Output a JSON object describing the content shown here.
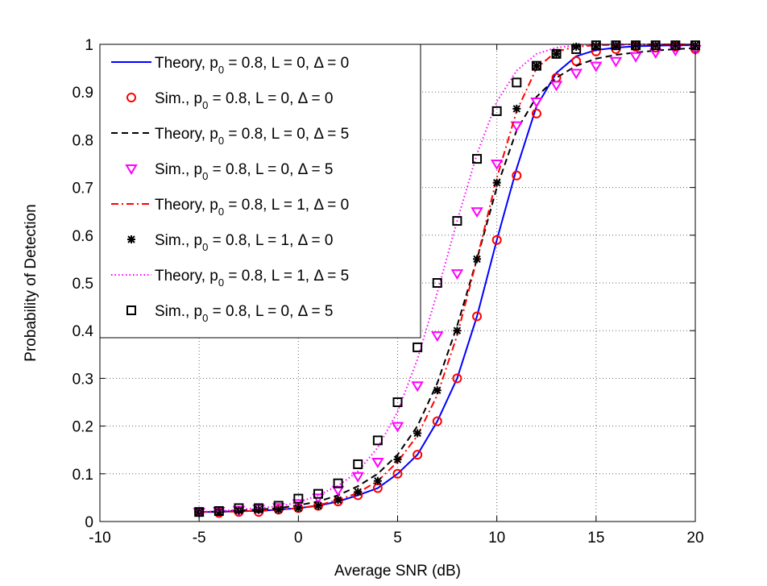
{
  "chart_data": {
    "type": "line",
    "title": "",
    "xlabel": "Average SNR (dB)",
    "ylabel": "Probability of Detection",
    "xlim": [
      -10,
      20
    ],
    "ylim": [
      0,
      1
    ],
    "xticks": [
      -10,
      -5,
      0,
      5,
      10,
      15,
      20
    ],
    "yticks": [
      0,
      0.1,
      0.2,
      0.3,
      0.4,
      0.5,
      0.6,
      0.7,
      0.8,
      0.9,
      1
    ],
    "xtick_labels": [
      "-10",
      "-5",
      "0",
      "5",
      "10",
      "15",
      "20"
    ],
    "ytick_labels": [
      "0",
      "0.1",
      "0.2",
      "0.3",
      "0.4",
      "0.5",
      "0.6",
      "0.7",
      "0.8",
      "0.9",
      "1"
    ],
    "grid": true,
    "legend_position": "top-left",
    "x": [
      -5,
      -4,
      -3,
      -2,
      -1,
      0,
      1,
      2,
      3,
      4,
      5,
      6,
      7,
      8,
      9,
      10,
      11,
      12,
      13,
      14,
      15,
      16,
      17,
      18,
      19,
      20
    ],
    "series": [
      {
        "name": "Theory, p0 = 0.8, L = 0, Δ = 0",
        "legend_prefix": "Theory, p",
        "legend_sub": "0",
        "legend_suffix": " = 0.8, L = 0, Δ = 0",
        "style": "line",
        "line": "solid",
        "color": "#0000ff",
        "values": [
          0.02,
          0.02,
          0.022,
          0.022,
          0.025,
          0.028,
          0.033,
          0.042,
          0.055,
          0.07,
          0.1,
          0.14,
          0.21,
          0.3,
          0.43,
          0.59,
          0.74,
          0.87,
          0.94,
          0.975,
          0.988,
          0.993,
          0.996,
          0.997,
          0.998,
          0.998
        ]
      },
      {
        "name": "Sim., p0 = 0.8, L = 0, Δ = 0",
        "legend_prefix": "Sim., p",
        "legend_sub": "0",
        "legend_suffix": " = 0.8, L = 0, Δ = 0",
        "style": "marker",
        "marker": "circle",
        "color": "#ff0000",
        "values": [
          0.02,
          0.018,
          0.02,
          0.02,
          0.025,
          0.028,
          0.033,
          0.042,
          0.055,
          0.07,
          0.1,
          0.14,
          0.21,
          0.3,
          0.43,
          0.59,
          0.725,
          0.855,
          0.93,
          0.965,
          0.985,
          0.99,
          0.995,
          0.993,
          0.995,
          0.99
        ]
      },
      {
        "name": "Theory, p0 = 0.8, L = 0, Δ = 5",
        "legend_prefix": "Theory, p",
        "legend_sub": "0",
        "legend_suffix": " = 0.8, L = 0, Δ = 5",
        "style": "line",
        "line": "dashed",
        "color": "#000000",
        "values": [
          0.02,
          0.021,
          0.023,
          0.025,
          0.028,
          0.034,
          0.042,
          0.055,
          0.074,
          0.1,
          0.14,
          0.2,
          0.29,
          0.41,
          0.55,
          0.7,
          0.82,
          0.89,
          0.93,
          0.955,
          0.97,
          0.978,
          0.983,
          0.987,
          0.99,
          0.992
        ]
      },
      {
        "name": "Sim., p0 = 0.8, L = 0, Δ = 5",
        "legend_prefix": "Sim., p",
        "legend_sub": "0",
        "legend_suffix": " = 0.8, L = 0, Δ = 5",
        "style": "marker",
        "marker": "triangle-down",
        "color": "#ff00ff",
        "values": [
          0.02,
          0.022,
          0.024,
          0.027,
          0.03,
          0.038,
          0.05,
          0.066,
          0.095,
          0.125,
          0.2,
          0.285,
          0.39,
          0.52,
          0.65,
          0.75,
          0.83,
          0.88,
          0.915,
          0.94,
          0.955,
          0.965,
          0.975,
          0.983,
          0.988,
          0.99
        ]
      },
      {
        "name": "Theory, p0 = 0.8, L = 1, Δ = 0",
        "legend_prefix": "Theory, p",
        "legend_sub": "0",
        "legend_suffix": " = 0.8, L = 1, Δ = 0",
        "style": "line",
        "line": "dashdot",
        "color": "#ff0000",
        "values": [
          0.02,
          0.02,
          0.021,
          0.023,
          0.025,
          0.028,
          0.034,
          0.045,
          0.06,
          0.085,
          0.125,
          0.18,
          0.265,
          0.39,
          0.55,
          0.72,
          0.86,
          0.95,
          0.985,
          0.995,
          0.998,
          0.999,
          1.0,
          1.0,
          1.0,
          1.0
        ]
      },
      {
        "name": "Sim., p0 = 0.8, L = 1, Δ = 0",
        "legend_prefix": "Sim., p",
        "legend_sub": "0",
        "legend_suffix": " = 0.8, L = 1, Δ = 0",
        "style": "marker",
        "marker": "asterisk",
        "color": "#000000",
        "values": [
          0.02,
          0.02,
          0.023,
          0.025,
          0.025,
          0.028,
          0.033,
          0.045,
          0.062,
          0.085,
          0.13,
          0.185,
          0.275,
          0.4,
          0.55,
          0.71,
          0.865,
          0.955,
          0.98,
          0.995,
          0.997,
          0.998,
          0.998,
          0.998,
          0.998,
          0.998
        ]
      },
      {
        "name": "Theory, p0 = 0.8, L = 1, Δ = 5",
        "legend_prefix": "Theory, p",
        "legend_sub": "0",
        "legend_suffix": " = 0.8, L = 1, Δ = 5",
        "style": "line",
        "line": "dotted",
        "color": "#ff00ff",
        "values": [
          0.02,
          0.022,
          0.025,
          0.028,
          0.032,
          0.04,
          0.055,
          0.075,
          0.105,
          0.155,
          0.23,
          0.34,
          0.48,
          0.63,
          0.77,
          0.88,
          0.945,
          0.98,
          0.993,
          0.998,
          0.999,
          1.0,
          1.0,
          1.0,
          1.0,
          1.0
        ]
      },
      {
        "name": "Sim., p0 = 0.8, L = 0, Δ = 5",
        "legend_prefix": "Sim., p",
        "legend_sub": "0",
        "legend_suffix": " = 0.8, L = 0, Δ = 5",
        "style": "marker",
        "marker": "square",
        "color": "#000000",
        "values": [
          0.02,
          0.022,
          0.028,
          0.028,
          0.033,
          0.048,
          0.058,
          0.08,
          0.12,
          0.17,
          0.25,
          0.365,
          0.5,
          0.63,
          0.76,
          0.86,
          0.92,
          0.955,
          0.98,
          0.99,
          0.998,
          0.998,
          0.998,
          0.998,
          0.998,
          0.998
        ]
      }
    ]
  }
}
